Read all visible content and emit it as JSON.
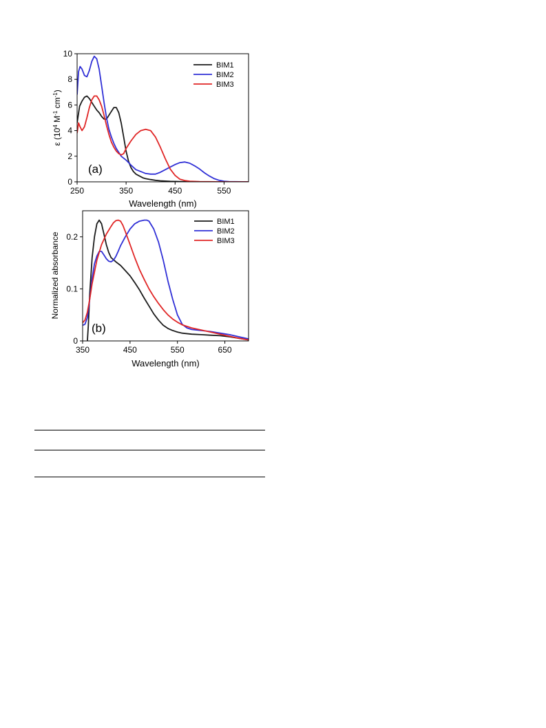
{
  "chart_data": [
    {
      "type": "line",
      "panel_label": "(a)",
      "title": "",
      "xlabel": "Wavelength (nm)",
      "ylabel_parts": [
        "ε (10",
        "4",
        " M",
        "-1",
        " cm",
        "-1",
        ")"
      ],
      "xlim": [
        250,
        600
      ],
      "ylim": [
        0,
        10
      ],
      "xticks": [
        250,
        350,
        450,
        550
      ],
      "yticks": [
        0,
        2,
        4,
        6,
        8,
        10
      ],
      "legend_position": "top-right",
      "series": [
        {
          "name": "BIM1",
          "color": "#1a1a1a",
          "x": [
            250,
            255,
            260,
            265,
            270,
            275,
            280,
            285,
            290,
            295,
            300,
            305,
            310,
            315,
            320,
            325,
            330,
            335,
            340,
            345,
            350,
            355,
            360,
            365,
            370,
            375,
            380,
            385,
            390,
            400,
            410,
            420,
            440,
            460,
            480,
            500,
            600
          ],
          "y": [
            4.6,
            5.9,
            6.3,
            6.6,
            6.7,
            6.5,
            6.2,
            5.9,
            5.6,
            5.4,
            5.1,
            4.9,
            4.9,
            5.2,
            5.5,
            5.8,
            5.8,
            5.4,
            4.6,
            3.5,
            2.4,
            1.6,
            1.1,
            0.8,
            0.6,
            0.5,
            0.4,
            0.3,
            0.25,
            0.18,
            0.12,
            0.08,
            0.04,
            0.02,
            0.01,
            0.0,
            0.0
          ]
        },
        {
          "name": "BIM2",
          "color": "#2f2fd6",
          "x": [
            250,
            253,
            256,
            260,
            265,
            270,
            275,
            280,
            285,
            290,
            295,
            300,
            305,
            310,
            315,
            320,
            325,
            330,
            335,
            340,
            350,
            360,
            370,
            380,
            390,
            400,
            410,
            420,
            430,
            440,
            450,
            460,
            470,
            480,
            490,
            500,
            510,
            520,
            530,
            540,
            550,
            560,
            600
          ],
          "y": [
            6.8,
            8.6,
            9.0,
            8.8,
            8.3,
            8.2,
            8.7,
            9.4,
            9.8,
            9.6,
            8.8,
            7.5,
            6.2,
            5.0,
            4.1,
            3.5,
            3.0,
            2.6,
            2.3,
            2.0,
            1.7,
            1.3,
            0.95,
            0.8,
            0.65,
            0.6,
            0.6,
            0.75,
            0.95,
            1.15,
            1.35,
            1.5,
            1.55,
            1.45,
            1.25,
            1.0,
            0.7,
            0.45,
            0.25,
            0.12,
            0.05,
            0.02,
            0.0
          ]
        },
        {
          "name": "BIM3",
          "color": "#e02525",
          "x": [
            250,
            253,
            256,
            260,
            265,
            270,
            275,
            280,
            285,
            290,
            295,
            300,
            305,
            310,
            315,
            320,
            325,
            330,
            335,
            340,
            345,
            350,
            360,
            370,
            380,
            390,
            400,
            410,
            420,
            430,
            440,
            450,
            460,
            470,
            480,
            500,
            550,
            600
          ],
          "y": [
            3.8,
            4.6,
            4.3,
            4.0,
            4.3,
            5.0,
            5.8,
            6.4,
            6.7,
            6.7,
            6.4,
            5.9,
            5.2,
            4.4,
            3.7,
            3.1,
            2.7,
            2.4,
            2.2,
            2.1,
            2.2,
            2.6,
            3.2,
            3.7,
            4.0,
            4.1,
            4.0,
            3.5,
            2.7,
            1.8,
            1.0,
            0.5,
            0.2,
            0.1,
            0.05,
            0.02,
            0.0,
            0.0
          ]
        }
      ]
    },
    {
      "type": "line",
      "panel_label": "(b)",
      "title": "",
      "xlabel": "Wavelength (nm)",
      "ylabel": "Normalized absorbance",
      "xlim": [
        350,
        700
      ],
      "ylim": [
        0,
        0.25
      ],
      "xticks": [
        350,
        450,
        550,
        650
      ],
      "yticks": [
        0,
        0.1,
        0.2
      ],
      "legend_position": "top-right",
      "series": [
        {
          "name": "BIM1",
          "color": "#1a1a1a",
          "x": [
            360,
            362,
            365,
            370,
            375,
            380,
            385,
            390,
            395,
            400,
            405,
            410,
            420,
            430,
            440,
            450,
            460,
            470,
            480,
            490,
            500,
            510,
            520,
            530,
            540,
            550,
            560,
            580,
            600,
            620,
            640,
            660,
            680,
            700
          ],
          "y": [
            0.0,
            0.03,
            0.09,
            0.16,
            0.2,
            0.225,
            0.232,
            0.225,
            0.205,
            0.185,
            0.17,
            0.16,
            0.152,
            0.145,
            0.135,
            0.125,
            0.112,
            0.098,
            0.082,
            0.067,
            0.052,
            0.04,
            0.03,
            0.024,
            0.02,
            0.017,
            0.015,
            0.013,
            0.012,
            0.011,
            0.01,
            0.008,
            0.005,
            0.002
          ]
        },
        {
          "name": "BIM2",
          "color": "#2f2fd6",
          "x": [
            350,
            355,
            360,
            365,
            370,
            375,
            380,
            385,
            390,
            395,
            400,
            405,
            410,
            415,
            420,
            425,
            430,
            440,
            450,
            460,
            470,
            480,
            485,
            490,
            500,
            510,
            520,
            530,
            540,
            550,
            560,
            570,
            580,
            600,
            620,
            640,
            660,
            680,
            700
          ],
          "y": [
            0.03,
            0.032,
            0.045,
            0.08,
            0.12,
            0.148,
            0.163,
            0.172,
            0.172,
            0.165,
            0.158,
            0.153,
            0.152,
            0.155,
            0.162,
            0.172,
            0.183,
            0.2,
            0.215,
            0.225,
            0.23,
            0.232,
            0.232,
            0.23,
            0.215,
            0.19,
            0.155,
            0.115,
            0.08,
            0.05,
            0.032,
            0.025,
            0.022,
            0.02,
            0.018,
            0.015,
            0.012,
            0.008,
            0.004
          ]
        },
        {
          "name": "BIM3",
          "color": "#e02525",
          "x": [
            350,
            355,
            360,
            365,
            370,
            380,
            390,
            400,
            410,
            415,
            420,
            425,
            430,
            435,
            440,
            450,
            460,
            470,
            480,
            490,
            500,
            510,
            520,
            530,
            540,
            550,
            560,
            580,
            600,
            620,
            640,
            660,
            680,
            700
          ],
          "y": [
            0.035,
            0.04,
            0.055,
            0.08,
            0.11,
            0.155,
            0.185,
            0.205,
            0.22,
            0.227,
            0.231,
            0.232,
            0.23,
            0.222,
            0.21,
            0.185,
            0.16,
            0.137,
            0.118,
            0.1,
            0.085,
            0.072,
            0.06,
            0.05,
            0.042,
            0.036,
            0.031,
            0.025,
            0.021,
            0.017,
            0.013,
            0.009,
            0.005,
            0.002
          ]
        }
      ]
    }
  ]
}
